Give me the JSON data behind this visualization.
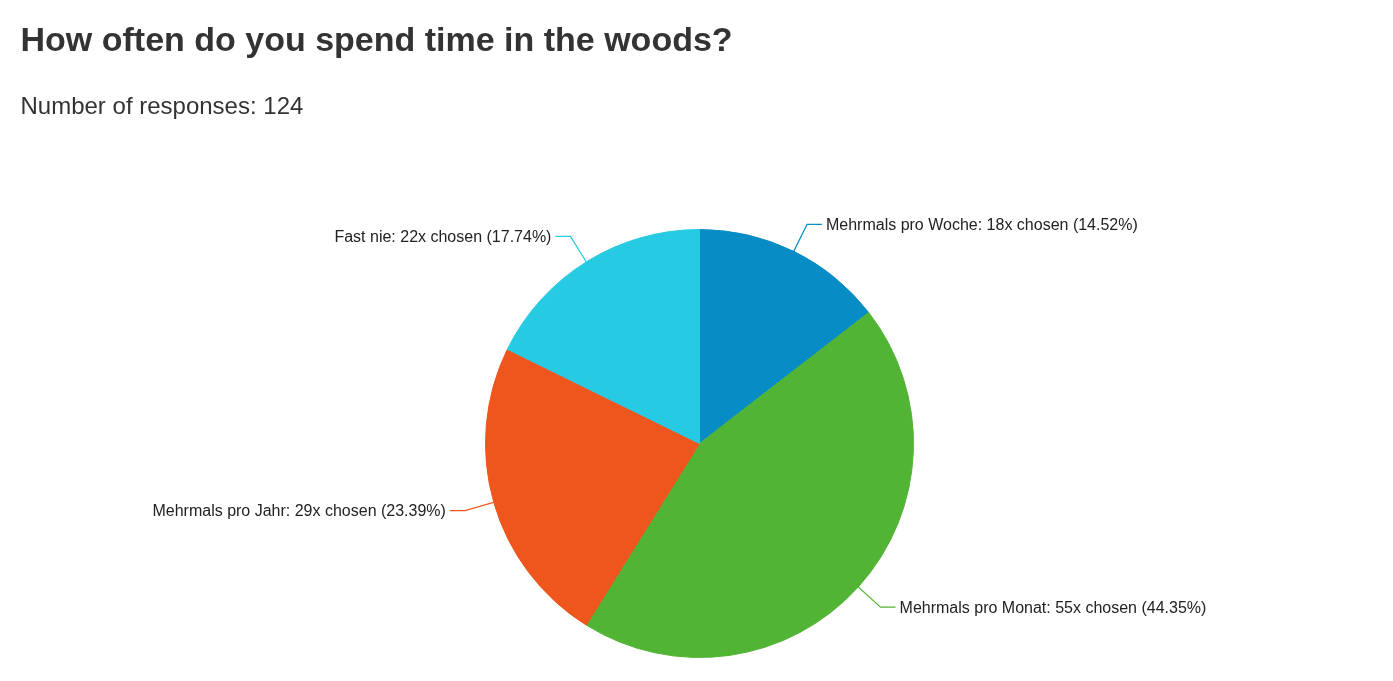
{
  "chart_data": {
    "type": "pie",
    "title": "How often do you spend time in the woods?",
    "subtitle": "Number of responses: 124",
    "categories": [
      "Mehrmals pro Woche",
      "Mehrmals pro Monat",
      "Mehrmals pro Jahr",
      "Fast nie"
    ],
    "values": [
      18,
      55,
      29,
      22
    ],
    "colors": [
      "#078cc6",
      "#52b435",
      "#ee561e",
      "#26cbe3"
    ],
    "value_labels": [
      "18x chosen (14.52%)",
      "55x chosen (44.35%)",
      "29x chosen (23.39%)",
      "22x chosen (17.74%)"
    ]
  }
}
